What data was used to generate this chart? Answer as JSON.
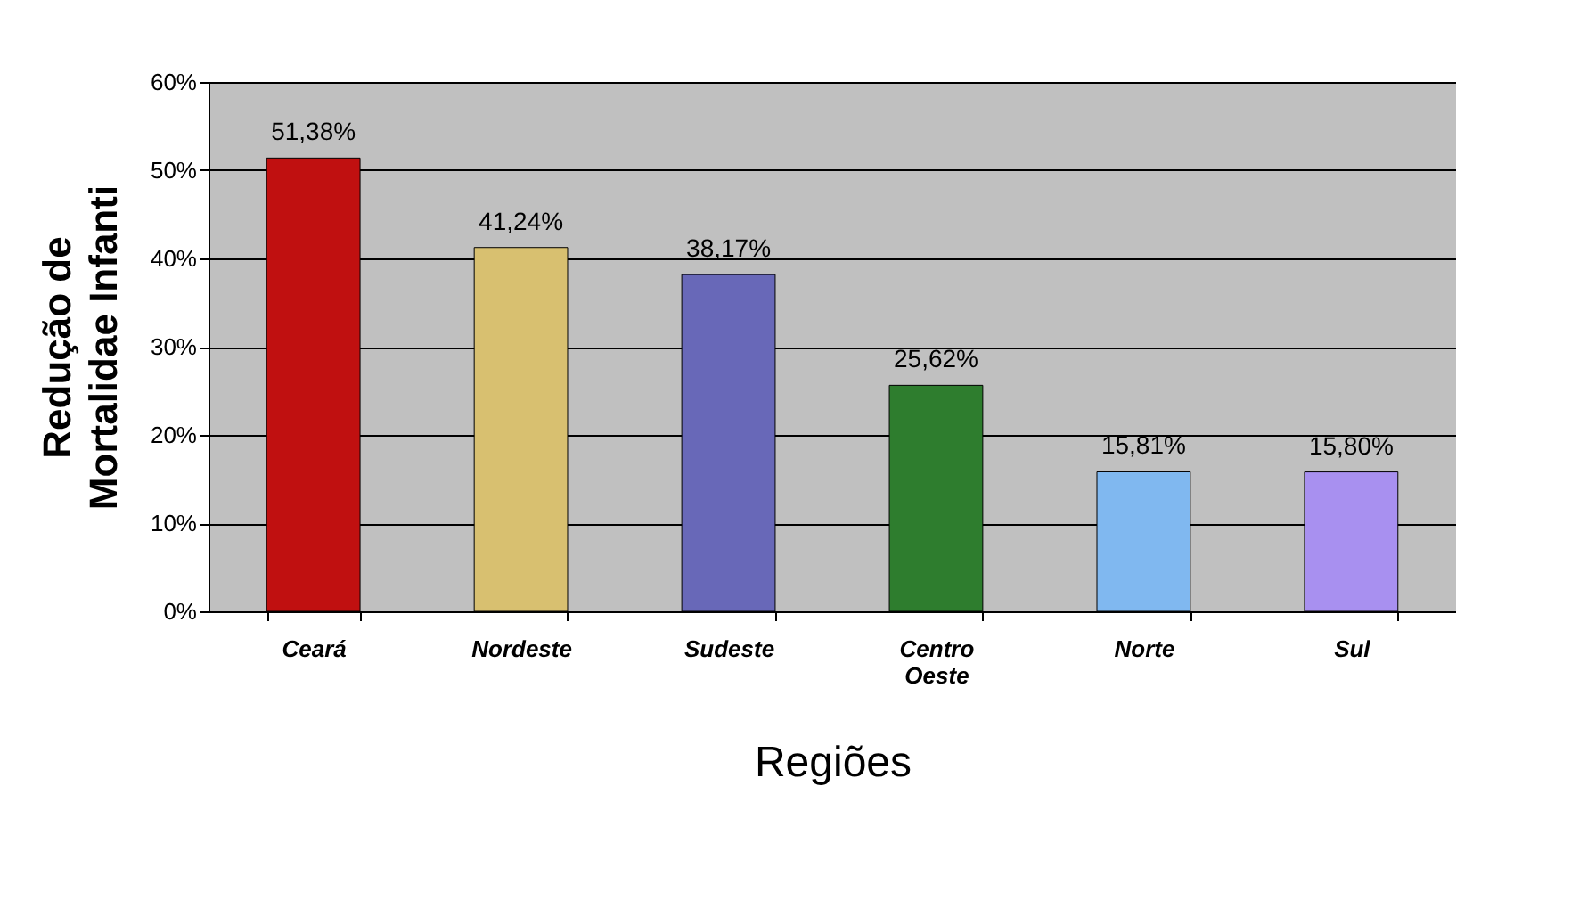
{
  "chart_data": {
    "type": "bar",
    "xlabel": "Regiões",
    "ylabel": "Redução de\nMortalidae Infanti",
    "categories": [
      "Ceará",
      "Nordeste",
      "Sudeste",
      "Centro Oeste",
      "Norte",
      "Sul"
    ],
    "values": [
      51.38,
      41.24,
      38.17,
      25.62,
      15.81,
      15.8
    ],
    "colors": [
      "#c01010",
      "#d8c070",
      "#6868b8",
      "#2e7d2e",
      "#80b8f0",
      "#a890f0"
    ],
    "value_labels": [
      "51,38%",
      "41,24%",
      "38,17%",
      "25,62%",
      "15,81%",
      "15,80%"
    ],
    "ylim": [
      0,
      60
    ],
    "yticks": [
      {
        "value": 0,
        "label": "0%"
      },
      {
        "value": 10,
        "label": "10%"
      },
      {
        "value": 20,
        "label": "20%"
      },
      {
        "value": 30,
        "label": "30%"
      },
      {
        "value": 40,
        "label": "40%"
      },
      {
        "value": 50,
        "label": "50%"
      },
      {
        "value": 60,
        "label": "60%"
      }
    ],
    "grid": "y"
  }
}
